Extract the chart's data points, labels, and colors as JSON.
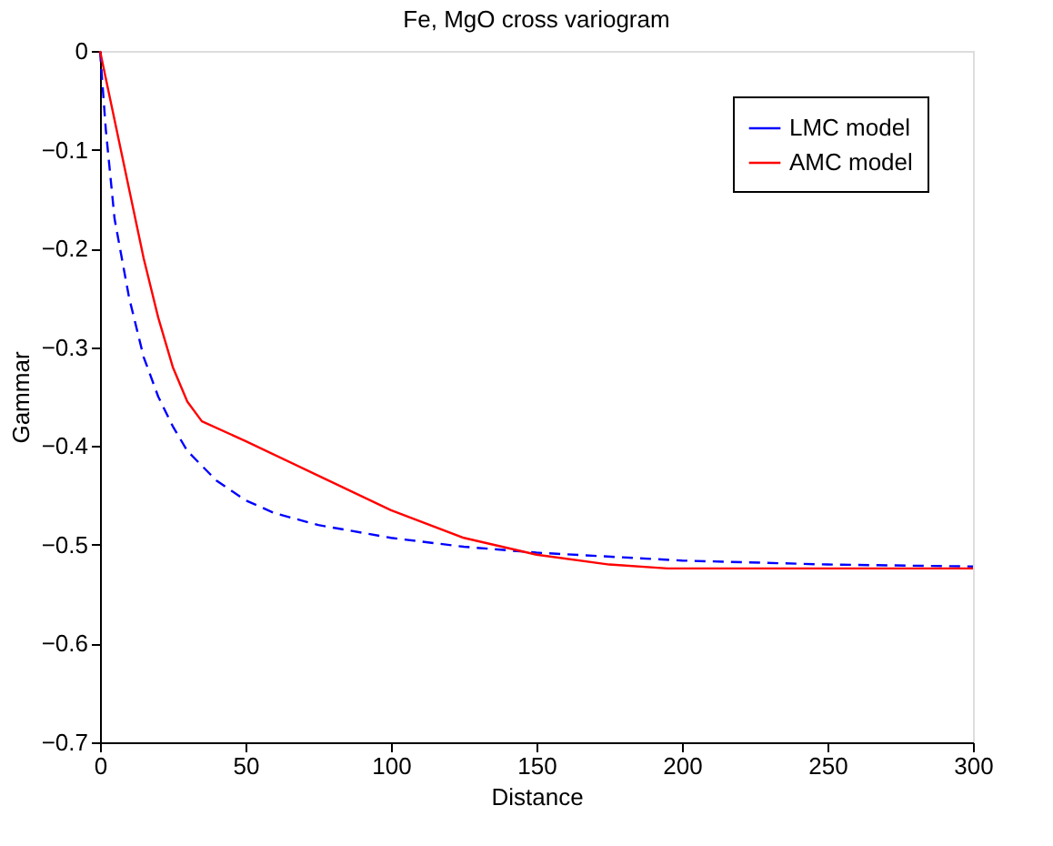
{
  "chart_data": {
    "type": "line",
    "title": "Fe, MgO cross variogram",
    "xlabel": "Distance",
    "ylabel": "Gammar",
    "xlim": [
      0,
      300
    ],
    "xticks": [
      0,
      50,
      100,
      150,
      200,
      250,
      300
    ],
    "ylim": [
      -0.7,
      0
    ],
    "yticks": [
      -0.7,
      -0.6,
      -0.5,
      -0.4,
      -0.3,
      -0.2,
      -0.1,
      0
    ],
    "legend": "top right",
    "grid": false,
    "series": [
      {
        "name": "LMC model",
        "color": "#0000ff",
        "line_style": "dashed",
        "x": [
          0,
          2,
          5,
          10,
          15,
          20,
          25,
          30,
          40,
          50,
          60,
          75,
          100,
          125,
          150,
          200,
          250,
          300
        ],
        "values": [
          0,
          -0.08,
          -0.17,
          -0.25,
          -0.31,
          -0.35,
          -0.38,
          -0.405,
          -0.435,
          -0.455,
          -0.468,
          -0.48,
          -0.493,
          -0.502,
          -0.508,
          -0.516,
          -0.52,
          -0.522
        ]
      },
      {
        "name": "AMC model",
        "color": "#ff0000",
        "line_style": "solid",
        "x": [
          0,
          5,
          10,
          15,
          20,
          25,
          30,
          35,
          50,
          75,
          100,
          125,
          150,
          175,
          195,
          250,
          300
        ],
        "values": [
          0,
          -0.07,
          -0.14,
          -0.21,
          -0.27,
          -0.32,
          -0.355,
          -0.375,
          -0.395,
          -0.43,
          -0.465,
          -0.493,
          -0.51,
          -0.52,
          -0.524,
          -0.524,
          -0.524
        ]
      }
    ]
  }
}
